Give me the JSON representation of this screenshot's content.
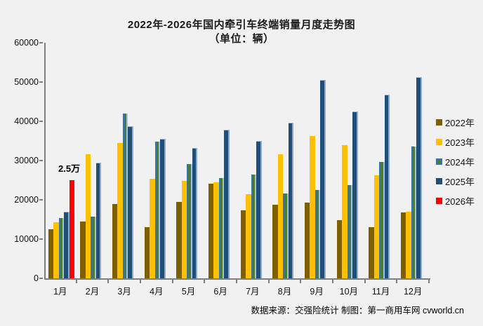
{
  "title": {
    "line1": "2022年-2026年国内牵引车终端销量月度走势图",
    "line2": "（单位：辆）"
  },
  "annotation": {
    "text": "2.5万",
    "series": "2026年",
    "month": "1月",
    "value": 25000
  },
  "footer": {
    "source": "数据来源：交强险统计  制图：第一商用车网 cvworld.cn"
  },
  "colors": {
    "background": "#F1F1F1",
    "axis": "#7F7F7F",
    "series_2022": "#7E5F00",
    "series_2023": "#FFC000",
    "series_2024_fill": "#4E7B31",
    "series_2024_border": "#2E75B6",
    "series_2025": "#1F4E79",
    "series_2026": "#FF0000"
  },
  "chart_data": {
    "type": "bar",
    "title": "2022年-2026年国内牵引车终端销量月度走势图",
    "subtitle": "（单位：辆）",
    "categories": [
      "1月",
      "2月",
      "3月",
      "4月",
      "5月",
      "6月",
      "7月",
      "8月",
      "9月",
      "10月",
      "11月",
      "12月"
    ],
    "series": [
      {
        "name": "2022年",
        "color": "#7E5F00",
        "values": [
          12500,
          14500,
          18900,
          13000,
          19500,
          24100,
          17400,
          18800,
          19300,
          14800,
          13000,
          16700
        ]
      },
      {
        "name": "2023年",
        "color": "#FFC000",
        "values": [
          14300,
          31600,
          34400,
          25300,
          24800,
          24500,
          21500,
          31600,
          36200,
          34000,
          26200,
          17000
        ]
      },
      {
        "name": "2024年",
        "color": "#4E7B31",
        "border_color": "#2E75B6",
        "values": [
          15400,
          15800,
          41900,
          34800,
          29100,
          25500,
          26500,
          21600,
          22500,
          23700,
          29700,
          33500
        ]
      },
      {
        "name": "2025年",
        "color": "#1F4E79",
        "values": [
          16900,
          29400,
          38800,
          35600,
          33200,
          37900,
          35000,
          39600,
          50500,
          42500,
          46700,
          51300
        ]
      },
      {
        "name": "2026年",
        "color": "#FF0000",
        "values": [
          25000,
          null,
          null,
          null,
          null,
          null,
          null,
          null,
          null,
          null,
          null,
          null
        ]
      }
    ],
    "ylim": [
      0,
      60000
    ],
    "y_tick_step": 10000,
    "y_tick_labels": [
      "0",
      "10000",
      "20000",
      "30000",
      "40000",
      "50000",
      "60000"
    ],
    "grid": false,
    "legend_position": "right",
    "annotations": [
      {
        "text": "2.5万",
        "series": "2026年",
        "category": "1月"
      }
    ]
  }
}
